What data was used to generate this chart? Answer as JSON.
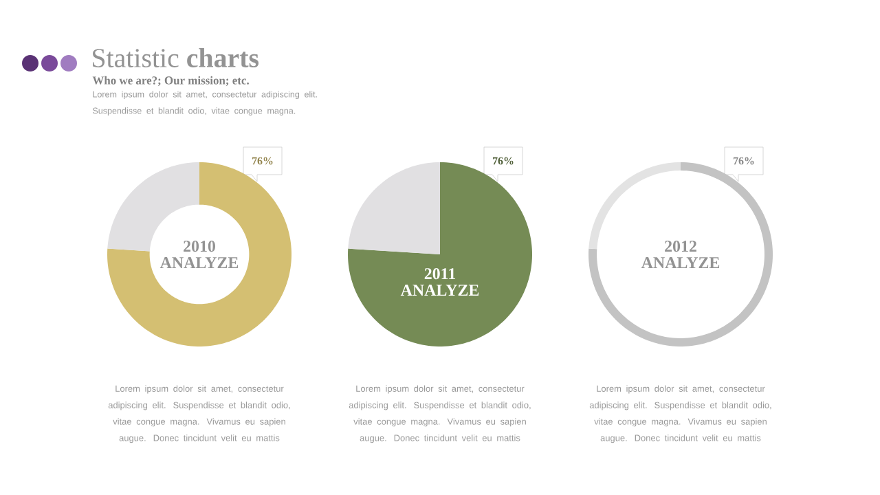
{
  "chart_data": [
    {
      "type": "other",
      "title": "Statistic **charts**",
      "subtitle": "Who we are?; Our mission; etc.",
      "annotations": [
        "Lorem ipsum dolor sit amet, consectetur adipiscing elit. Suspendisse et blandit odio, vitae congue magna."
      ]
    },
    {
      "type": "donut",
      "title": "2010 ANALYZE",
      "categories": [
        null,
        null
      ],
      "values": [
        76,
        24
      ],
      "colors": [
        "#d4bf72",
        "#e1e0e2"
      ],
      "value_labels": [
        "76%",
        null
      ],
      "annotations": [
        "Lorem ipsum dolor sit amet, consectetur adipiscing elit. Suspendisse et blandit odio, vitae congue magna. Vivamus eu sapien augue. Donec tincidunt velit eu mattis"
      ]
    },
    {
      "type": "pie",
      "title": "2011 ANALYZE",
      "categories": [
        null,
        null
      ],
      "values": [
        76,
        24
      ],
      "colors": [
        "#758b55",
        "#e1e0e2"
      ],
      "value_labels": [
        "76%",
        null
      ],
      "annotations": [
        "Lorem ipsum dolor sit amet, consectetur adipiscing elit. Suspendisse et blandit odio, vitae congue magna. Vivamus eu sapien augue. Donec tincidunt velit eu mattis"
      ]
    },
    {
      "type": "donut",
      "title": "2012 ANALYZE",
      "categories": [
        null,
        null
      ],
      "values": [
        76,
        24
      ],
      "colors": [
        "#c3c3c3",
        "#e3e3e3"
      ],
      "value_labels": [
        "76%",
        null
      ],
      "annotations": [
        "Lorem ipsum dolor sit amet, consectetur adipiscing elit. Suspendisse et blandit odio, vitae congue magna. Vivamus eu sapien augue. Donec tincidunt velit eu mattis"
      ]
    }
  ]
}
